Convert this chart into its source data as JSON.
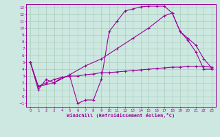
{
  "background_color": "#cce8e0",
  "grid_color": "#aaccbb",
  "line_color": "#990099",
  "xlabel": "Windchill (Refroidissement éolien,°C)",
  "xlim": [
    -0.5,
    23.5
  ],
  "ylim": [
    -1.5,
    13.5
  ],
  "xticks": [
    0,
    1,
    2,
    3,
    4,
    5,
    6,
    7,
    8,
    9,
    10,
    11,
    12,
    13,
    14,
    15,
    16,
    17,
    18,
    19,
    20,
    21,
    22,
    23
  ],
  "yticks": [
    -1,
    0,
    1,
    2,
    3,
    4,
    5,
    6,
    7,
    8,
    9,
    10,
    11,
    12,
    13
  ],
  "curve1_x": [
    0,
    1,
    2,
    3,
    4,
    5,
    6,
    7,
    8,
    9,
    10,
    11,
    12,
    13,
    14,
    15,
    16,
    17,
    18,
    19,
    20,
    21,
    22,
    23
  ],
  "curve1_y": [
    5.0,
    1.0,
    2.5,
    2.0,
    2.8,
    3.0,
    -1.0,
    -0.5,
    -0.5,
    2.5,
    9.5,
    11.0,
    12.5,
    12.8,
    13.1,
    13.2,
    13.2,
    13.2,
    12.2,
    9.5,
    8.2,
    6.5,
    4.0,
    4.0
  ],
  "curve2_x": [
    0,
    1,
    3,
    5,
    7,
    9,
    11,
    13,
    15,
    17,
    18,
    19,
    20,
    21,
    22,
    23
  ],
  "curve2_y": [
    5.0,
    1.5,
    2.0,
    3.2,
    4.5,
    5.5,
    7.0,
    8.5,
    10.0,
    11.8,
    12.2,
    9.5,
    8.5,
    7.5,
    5.5,
    4.2
  ],
  "curve3_x": [
    0,
    1,
    2,
    3,
    4,
    5,
    6,
    7,
    8,
    9,
    10,
    11,
    12,
    13,
    14,
    15,
    16,
    17,
    18,
    19,
    20,
    21,
    22,
    23
  ],
  "curve3_y": [
    5.0,
    1.5,
    2.0,
    2.5,
    2.8,
    3.0,
    3.0,
    3.2,
    3.3,
    3.5,
    3.5,
    3.6,
    3.7,
    3.8,
    3.9,
    4.0,
    4.1,
    4.2,
    4.3,
    4.3,
    4.4,
    4.4,
    4.4,
    4.3
  ]
}
